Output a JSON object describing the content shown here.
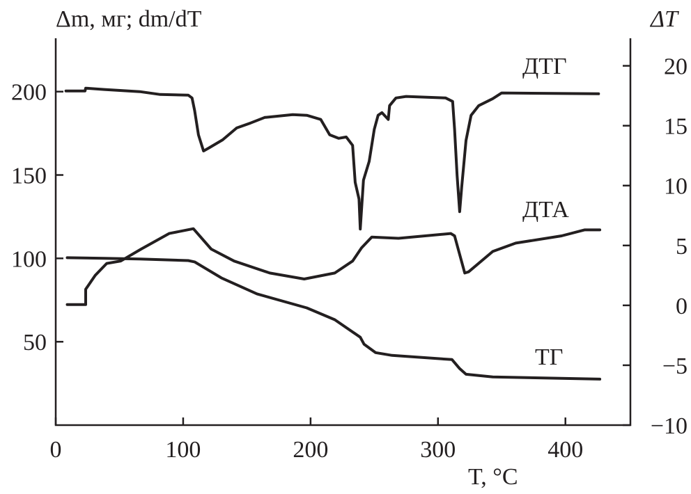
{
  "chart_data": {
    "type": "line",
    "xlabel": "T, °C",
    "ylabel_left": "Δm, мг; dm/dT",
    "ylabel_right": "ΔT",
    "xlim": [
      0,
      451
    ],
    "ylim_left": [
      0,
      232
    ],
    "ylim_right": [
      -10,
      22.3
    ],
    "x_ticks": [
      0,
      100,
      200,
      300,
      400
    ],
    "y_ticks_left": [
      50,
      100,
      150,
      200
    ],
    "y_ticks_right": [
      -10,
      -5,
      0,
      5,
      10,
      15,
      20
    ],
    "y_tick_labels_right": [
      "−10",
      "−5",
      "0",
      "5",
      "10",
      "15",
      "20"
    ],
    "grid": false,
    "color": "#231f20",
    "series": [
      {
        "name": "ДТГ",
        "axis": "left",
        "points": [
          [
            8,
            200.4
          ],
          [
            23,
            200.4
          ],
          [
            23.5,
            202.1
          ],
          [
            38,
            201.3
          ],
          [
            66,
            200.0
          ],
          [
            82,
            198.3
          ],
          [
            104,
            197.9
          ],
          [
            107,
            196.2
          ],
          [
            109,
            188.7
          ],
          [
            112,
            174.1
          ],
          [
            116,
            164.4
          ],
          [
            120,
            166.1
          ],
          [
            131,
            171.1
          ],
          [
            142,
            178.2
          ],
          [
            153,
            181.2
          ],
          [
            164,
            184.5
          ],
          [
            186,
            186.2
          ],
          [
            197,
            185.8
          ],
          [
            208,
            183.3
          ],
          [
            215,
            174.1
          ],
          [
            222,
            172.0
          ],
          [
            228,
            172.8
          ],
          [
            233,
            167.8
          ],
          [
            235,
            145.6
          ],
          [
            238,
            135.6
          ],
          [
            239,
            117.6
          ],
          [
            241.5,
            146.9
          ],
          [
            246,
            158.2
          ],
          [
            250,
            177.4
          ],
          [
            253,
            185.8
          ],
          [
            256,
            187.4
          ],
          [
            261,
            183.3
          ],
          [
            262,
            191.6
          ],
          [
            267,
            196.2
          ],
          [
            275,
            197.1
          ],
          [
            306,
            196.2
          ],
          [
            311.5,
            194.1
          ],
          [
            313,
            177.4
          ],
          [
            315,
            149.8
          ],
          [
            317,
            128.0
          ],
          [
            318.6,
            142.7
          ],
          [
            322,
            170.7
          ],
          [
            326,
            185.8
          ],
          [
            332,
            191.6
          ],
          [
            343,
            195.8
          ],
          [
            350,
            199.2
          ],
          [
            426,
            198.7
          ]
        ]
      },
      {
        "name": "ДТА",
        "axis": "right",
        "points": [
          [
            9,
            0.06
          ],
          [
            23.5,
            0.06
          ],
          [
            23.5,
            1.34
          ],
          [
            31,
            2.5
          ],
          [
            40,
            3.5
          ],
          [
            51,
            3.7
          ],
          [
            67,
            4.7
          ],
          [
            89,
            6.0
          ],
          [
            108,
            6.4
          ],
          [
            122,
            4.7
          ],
          [
            140,
            3.7
          ],
          [
            168,
            2.7
          ],
          [
            195,
            2.2
          ],
          [
            219,
            2.7
          ],
          [
            233,
            3.7
          ],
          [
            240,
            4.8
          ],
          [
            248,
            5.7
          ],
          [
            269,
            5.6
          ],
          [
            310,
            6.0
          ],
          [
            313,
            5.8
          ],
          [
            321,
            2.7
          ],
          [
            324,
            2.8
          ],
          [
            343,
            4.5
          ],
          [
            361,
            5.2
          ],
          [
            397,
            5.8
          ],
          [
            415,
            6.3
          ],
          [
            427,
            6.3
          ]
        ]
      },
      {
        "name": "ТГ",
        "axis": "left",
        "points": [
          [
            9,
            100.4
          ],
          [
            38,
            100.0
          ],
          [
            66,
            99.6
          ],
          [
            104,
            98.7
          ],
          [
            109,
            97.9
          ],
          [
            130,
            88.3
          ],
          [
            158,
            78.7
          ],
          [
            197,
            70.3
          ],
          [
            219,
            63.2
          ],
          [
            239,
            52.7
          ],
          [
            242,
            48.5
          ],
          [
            251,
            43.5
          ],
          [
            264,
            41.8
          ],
          [
            311,
            39.3
          ],
          [
            317,
            33.9
          ],
          [
            322,
            30.5
          ],
          [
            343,
            28.9
          ],
          [
            427,
            27.6
          ]
        ]
      }
    ]
  }
}
